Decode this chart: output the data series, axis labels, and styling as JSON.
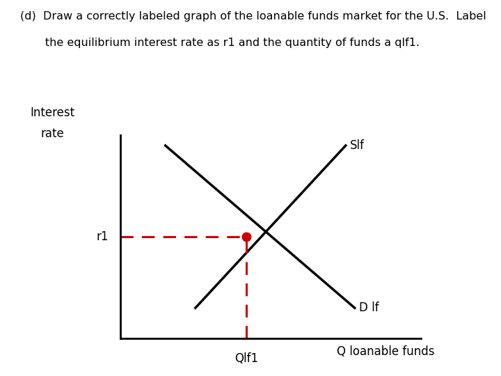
{
  "title_line1": "(d)  Draw a correctly labeled graph of the loanable funds market for the U.S.  Label",
  "title_line2": "       the equilibrium interest rate as r1 and the quantity of funds a qlf1.",
  "ylabel_line1": "Interest",
  "ylabel_line2": "rate",
  "xlabel": "Q loanable funds",
  "supply_label": "Slf",
  "demand_label": "D lf",
  "r1_label": "r1",
  "q1_label": "Qlf1",
  "bg_color": "#ffffff",
  "axis_color": "#000000",
  "curve_color": "#000000",
  "dashed_color": "#cc0000",
  "dot_color": "#cc0000",
  "xlim": [
    0,
    10
  ],
  "ylim": [
    0,
    10
  ],
  "eq_x": 4.2,
  "eq_y": 5.0,
  "supply_x1": 2.5,
  "supply_y1": 1.5,
  "supply_x2": 7.5,
  "supply_y2": 9.5,
  "demand_x1": 1.5,
  "demand_y1": 9.5,
  "demand_x2": 7.8,
  "demand_y2": 1.5
}
